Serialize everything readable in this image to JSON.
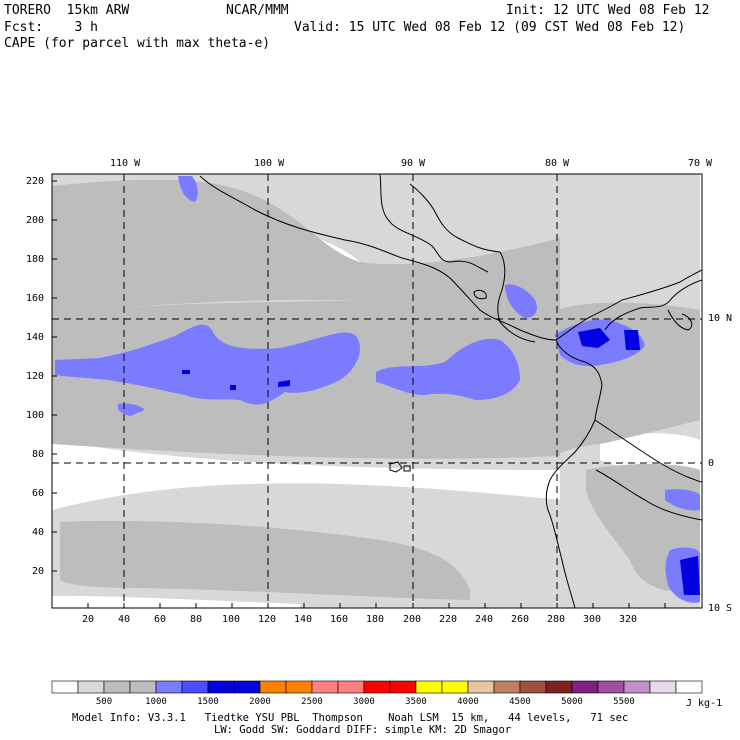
{
  "header": {
    "model": "TORERO  15km ARW",
    "org": "NCAR/MMM",
    "init": "Init: 12 UTC Wed 08 Feb 12",
    "fcst": "Fcst:    3 h",
    "valid": "Valid: 15 UTC Wed 08 Feb 12 (09 CST Wed 08 Feb 12)",
    "field": "CAPE (for parcel with max theta-e)"
  },
  "map": {
    "lon_labels": [
      "110 W",
      "100 W",
      "90 W",
      "80 W",
      "70 W"
    ],
    "lat_labels": [
      "10 N",
      "0",
      "10 S"
    ],
    "x_ticks": [
      "20",
      "40",
      "60",
      "80",
      "100",
      "120",
      "140",
      "160",
      "180",
      "200",
      "220",
      "240",
      "260",
      "280",
      "300",
      "320"
    ],
    "y_ticks": [
      "220",
      "200",
      "180",
      "160",
      "140",
      "120",
      "100",
      "80",
      "60",
      "40",
      "20"
    ],
    "colors": {
      "land_line": "#000000",
      "light_gray": "#d8d8d8",
      "mid_gray": "#bdbdbd",
      "light_blue": "#7b7bff",
      "blue": "#4d4dff",
      "dark_blue": "#0000e0"
    }
  },
  "colorbar": {
    "labels": [
      "500",
      "1000",
      "1500",
      "2000",
      "2500",
      "3000",
      "3500",
      "4000",
      "4500",
      "5000",
      "5500"
    ],
    "unit": "J kg-1",
    "colors": [
      "#ffffff",
      "#d8d8d8",
      "#bdbdbd",
      "#bdbdbd",
      "#7b7bff",
      "#4d4dff",
      "#0000e0",
      "#0000e0",
      "#ff8000",
      "#ff8000",
      "#ff8080",
      "#ff8080",
      "#ff0000",
      "#ff0000",
      "#ffff00",
      "#ffff00",
      "#e6c8a0",
      "#c08060",
      "#a05040",
      "#802020",
      "#802080",
      "#a050a0",
      "#c090c8",
      "#e8d8f0",
      "#ffffff"
    ]
  },
  "footer": {
    "line1": "Model Info: V3.3.1   Tiedtke YSU PBL  Thompson    Noah LSM  15 km,   44 levels,   71 sec",
    "line2": "LW: Godd SW: Goddard DIFF: simple KM: 2D Smagor"
  }
}
